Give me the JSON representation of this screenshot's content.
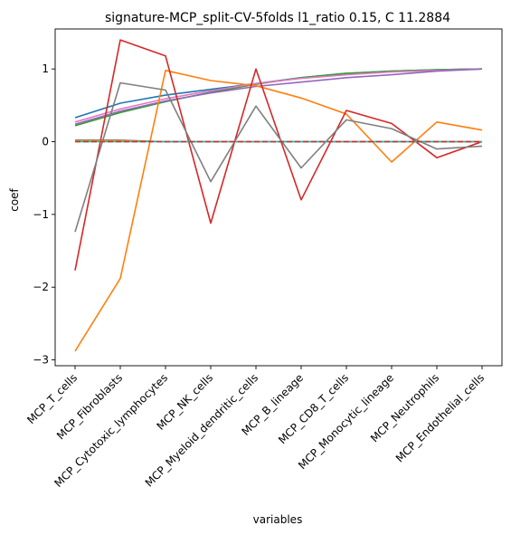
{
  "chart_data": {
    "type": "line",
    "title": "signature-MCP_split-CV-5folds l1_ratio 0.15, C 11.2884",
    "xlabel": "variables",
    "ylabel": "coef",
    "ylim": [
      -3.08,
      1.55
    ],
    "yticks": [
      -3,
      -2,
      -1,
      0,
      1
    ],
    "grid": false,
    "legend": "none",
    "categories": [
      "MCP_T_cells",
      "MCP_Fibroblasts",
      "MCP_Cytotoxic_lymphocytes",
      "MCP_NK_cells",
      "MCP_Myeloid_dendritic_cells",
      "MCP_B_lineage",
      "MCP_CD8_T_cells",
      "MCP_Monocytic_lineage",
      "MCP_Neutrophils",
      "MCP_Endothelial_cells"
    ],
    "series": [
      {
        "color": "#1f77b4",
        "values": [
          0.33,
          0.53,
          0.64,
          0.72,
          0.8,
          0.88,
          0.94,
          0.97,
          0.99,
          1.0
        ]
      },
      {
        "color": "#2ca02c",
        "values": [
          0.22,
          0.4,
          0.55,
          0.68,
          0.79,
          0.88,
          0.94,
          0.97,
          0.99,
          1.0
        ]
      },
      {
        "color": "#e377c2",
        "values": [
          0.27,
          0.45,
          0.59,
          0.7,
          0.8,
          0.87,
          0.92,
          0.96,
          0.98,
          1.0
        ]
      },
      {
        "color": "#9467bd",
        "values": [
          0.24,
          0.42,
          0.56,
          0.67,
          0.76,
          0.82,
          0.88,
          0.92,
          0.97,
          1.0
        ]
      },
      {
        "color": "#ff7f0e",
        "values": [
          -2.88,
          -1.88,
          0.98,
          0.84,
          0.77,
          0.6,
          0.38,
          -0.28,
          0.27,
          0.16
        ]
      },
      {
        "color": "#d62728",
        "values": [
          -1.77,
          1.4,
          1.18,
          -1.12,
          1.0,
          -0.8,
          0.43,
          0.25,
          -0.22,
          0.0
        ]
      },
      {
        "color": "#7f7f7f",
        "values": [
          -1.24,
          0.81,
          0.71,
          -0.55,
          0.49,
          -0.36,
          0.3,
          0.18,
          -0.1,
          -0.06
        ]
      },
      {
        "color": "#8c564b",
        "values": [
          0.02,
          0.02,
          0.0,
          0.0,
          0.0,
          0.0,
          0.0,
          0.0,
          0.0,
          0.0
        ]
      },
      {
        "color": "#bcbd22",
        "values": [
          0.01,
          0.01,
          0.0,
          0.0,
          0.0,
          0.0,
          0.0,
          0.0,
          0.0,
          0.0
        ]
      },
      {
        "color": "#17becf",
        "values": [
          0.0,
          0.0,
          0.0,
          0.0,
          0.0,
          0.0,
          0.0,
          0.0,
          0.0,
          0.0
        ]
      },
      {
        "color": "#d62728",
        "values": [
          0.0,
          0.0,
          0.0,
          0.0,
          0.0,
          0.0,
          0.0,
          0.0,
          0.0,
          0.0
        ],
        "dashed": true
      }
    ]
  }
}
